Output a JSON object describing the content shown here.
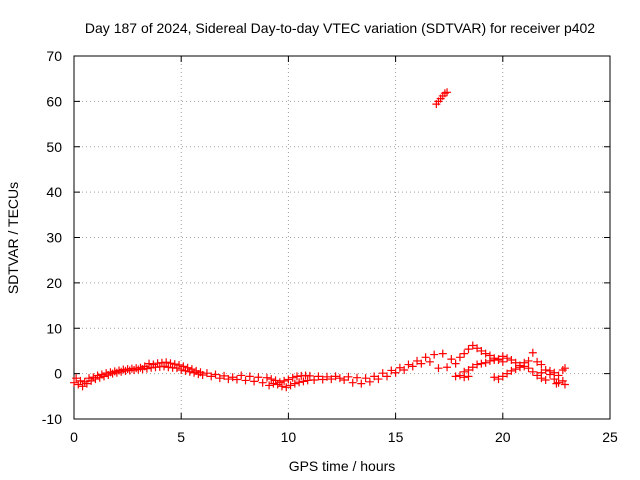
{
  "chart_data": {
    "type": "scatter",
    "title": "Day 187 of 2024, Sidereal Day-to-day VTEC variation (SDTVAR) for receiver p402",
    "xlabel": "GPS time / hours",
    "ylabel": "SDTVAR / TECUs",
    "xlim": [
      0,
      25
    ],
    "ylim": [
      -10,
      70
    ],
    "xticks": [
      "0",
      "5",
      "10",
      "15",
      "20",
      "25"
    ],
    "yticks": [
      "-10",
      "0",
      "10",
      "20",
      "30",
      "40",
      "50",
      "60",
      "70"
    ],
    "grid": true,
    "marker_color": "#ff0000",
    "series": [
      {
        "name": "SDTVAR",
        "points": [
          [
            0.0,
            -2.0
          ],
          [
            0.1,
            -1.0
          ],
          [
            0.2,
            -2.4
          ],
          [
            0.3,
            -1.6
          ],
          [
            0.4,
            -2.8
          ],
          [
            0.5,
            -1.8
          ],
          [
            0.6,
            -2.2
          ],
          [
            0.7,
            -1.0
          ],
          [
            0.8,
            -1.6
          ],
          [
            0.9,
            -0.8
          ],
          [
            1.0,
            -1.2
          ],
          [
            1.1,
            -0.4
          ],
          [
            1.2,
            -0.9
          ],
          [
            1.3,
            -0.2
          ],
          [
            1.4,
            -0.6
          ],
          [
            1.5,
            0.1
          ],
          [
            1.6,
            -0.3
          ],
          [
            1.7,
            0.3
          ],
          [
            1.8,
            0.0
          ],
          [
            1.9,
            0.5
          ],
          [
            2.0,
            0.2
          ],
          [
            2.1,
            0.7
          ],
          [
            2.2,
            0.4
          ],
          [
            2.3,
            0.9
          ],
          [
            2.4,
            0.6
          ],
          [
            2.5,
            1.0
          ],
          [
            2.6,
            0.7
          ],
          [
            2.7,
            1.1
          ],
          [
            2.8,
            0.8
          ],
          [
            2.9,
            1.2
          ],
          [
            3.0,
            0.9
          ],
          [
            3.1,
            1.3
          ],
          [
            3.2,
            1.0
          ],
          [
            3.3,
            1.6
          ],
          [
            3.4,
            1.1
          ],
          [
            3.5,
            2.2
          ],
          [
            3.6,
            1.3
          ],
          [
            3.7,
            2.0
          ],
          [
            3.8,
            1.4
          ],
          [
            3.9,
            2.3
          ],
          [
            4.0,
            1.5
          ],
          [
            4.1,
            2.4
          ],
          [
            4.2,
            1.6
          ],
          [
            4.3,
            2.5
          ],
          [
            4.4,
            1.4
          ],
          [
            4.5,
            2.3
          ],
          [
            4.6,
            1.3
          ],
          [
            4.7,
            2.1
          ],
          [
            4.8,
            1.2
          ],
          [
            4.9,
            1.9
          ],
          [
            5.0,
            0.8
          ],
          [
            5.1,
            1.6
          ],
          [
            5.2,
            0.6
          ],
          [
            5.3,
            1.3
          ],
          [
            5.4,
            0.4
          ],
          [
            5.5,
            1.0
          ],
          [
            5.6,
            0.2
          ],
          [
            5.7,
            0.6
          ],
          [
            5.8,
            -0.1
          ],
          [
            5.9,
            0.3
          ],
          [
            6.0,
            -0.3
          ],
          [
            6.2,
            0.1
          ],
          [
            6.4,
            -0.6
          ],
          [
            6.6,
            -0.2
          ],
          [
            6.8,
            -1.0
          ],
          [
            7.0,
            -0.5
          ],
          [
            7.2,
            -1.2
          ],
          [
            7.4,
            -0.8
          ],
          [
            7.6,
            -1.3
          ],
          [
            7.8,
            -0.4
          ],
          [
            8.0,
            -1.5
          ],
          [
            8.2,
            -0.6
          ],
          [
            8.4,
            -1.7
          ],
          [
            8.6,
            -0.8
          ],
          [
            8.8,
            -2.0
          ],
          [
            9.0,
            -0.9
          ],
          [
            9.1,
            -2.6
          ],
          [
            9.2,
            -1.2
          ],
          [
            9.3,
            -2.2
          ],
          [
            9.4,
            -1.5
          ],
          [
            9.5,
            -2.4
          ],
          [
            9.6,
            -1.9
          ],
          [
            9.7,
            -2.8
          ],
          [
            9.8,
            -1.6
          ],
          [
            9.9,
            -3.0
          ],
          [
            10.0,
            -1.3
          ],
          [
            10.1,
            -2.6
          ],
          [
            10.2,
            -0.9
          ],
          [
            10.3,
            -2.2
          ],
          [
            10.4,
            -0.6
          ],
          [
            10.5,
            -1.9
          ],
          [
            10.6,
            -0.5
          ],
          [
            10.7,
            -1.7
          ],
          [
            10.8,
            -0.4
          ],
          [
            10.9,
            -1.5
          ],
          [
            11.0,
            -0.5
          ],
          [
            11.2,
            -1.4
          ],
          [
            11.4,
            -0.6
          ],
          [
            11.6,
            -1.3
          ],
          [
            11.8,
            -0.7
          ],
          [
            12.0,
            -1.2
          ],
          [
            12.2,
            -0.6
          ],
          [
            12.4,
            -1.0
          ],
          [
            12.6,
            -1.4
          ],
          [
            12.8,
            -0.7
          ],
          [
            13.0,
            -2.0
          ],
          [
            13.2,
            -0.9
          ],
          [
            13.4,
            -2.2
          ],
          [
            13.6,
            -1.0
          ],
          [
            13.8,
            -1.8
          ],
          [
            14.0,
            -0.6
          ],
          [
            14.2,
            -1.2
          ],
          [
            14.4,
            0.1
          ],
          [
            14.6,
            -0.6
          ],
          [
            14.8,
            0.7
          ],
          [
            15.0,
            0.2
          ],
          [
            15.2,
            1.3
          ],
          [
            15.4,
            0.8
          ],
          [
            15.6,
            2.0
          ],
          [
            15.8,
            1.6
          ],
          [
            16.0,
            2.8
          ],
          [
            16.2,
            2.2
          ],
          [
            16.4,
            3.6
          ],
          [
            16.6,
            2.6
          ],
          [
            16.8,
            4.2
          ],
          [
            17.0,
            1.2
          ],
          [
            17.2,
            4.4
          ],
          [
            17.4,
            1.4
          ],
          [
            17.6,
            3.2
          ],
          [
            17.8,
            2.2
          ],
          [
            18.0,
            3.6
          ],
          [
            18.2,
            4.4
          ],
          [
            18.4,
            5.4
          ],
          [
            18.6,
            6.2
          ],
          [
            18.8,
            5.6
          ],
          [
            19.0,
            5.0
          ],
          [
            19.2,
            4.4
          ],
          [
            19.4,
            4.0
          ],
          [
            19.6,
            3.4
          ],
          [
            19.8,
            3.0
          ],
          [
            18.2,
            0.4
          ],
          [
            18.4,
            0.8
          ],
          [
            18.6,
            1.4
          ],
          [
            18.8,
            2.0
          ],
          [
            19.0,
            2.2
          ],
          [
            19.2,
            2.4
          ],
          [
            19.4,
            2.8
          ],
          [
            19.6,
            3.0
          ],
          [
            19.8,
            3.2
          ],
          [
            20.0,
            2.6
          ],
          [
            20.0,
            3.8
          ],
          [
            20.2,
            3.4
          ],
          [
            20.4,
            3.0
          ],
          [
            20.6,
            2.4
          ],
          [
            20.8,
            1.8
          ],
          [
            21.0,
            1.6
          ],
          [
            21.2,
            1.2
          ],
          [
            21.4,
            0.4
          ],
          [
            21.6,
            -0.4
          ],
          [
            21.8,
            -1.0
          ],
          [
            19.6,
            -0.8
          ],
          [
            19.8,
            -1.2
          ],
          [
            20.0,
            -0.6
          ],
          [
            20.2,
            0.0
          ],
          [
            20.4,
            0.6
          ],
          [
            20.6,
            1.0
          ],
          [
            20.8,
            1.4
          ],
          [
            21.0,
            2.4
          ],
          [
            21.2,
            2.8
          ],
          [
            21.4,
            4.6
          ],
          [
            17.8,
            -0.6
          ],
          [
            18.0,
            -0.4
          ],
          [
            18.2,
            -0.8
          ],
          [
            18.4,
            -0.6
          ],
          [
            21.6,
            2.6
          ],
          [
            21.8,
            2.0
          ],
          [
            22.0,
            0.8
          ],
          [
            22.2,
            -0.2
          ],
          [
            22.4,
            -1.2
          ],
          [
            22.6,
            -2.0
          ],
          [
            22.2,
            0.6
          ],
          [
            22.4,
            0.2
          ],
          [
            22.6,
            -0.4
          ],
          [
            22.8,
            0.8
          ],
          [
            22.9,
            1.2
          ],
          [
            22.8,
            -1.6
          ],
          [
            22.9,
            -2.4
          ],
          [
            22.5,
            -2.2
          ],
          [
            22.0,
            -1.4
          ],
          [
            21.8,
            0.2
          ],
          [
            16.9,
            59.4
          ],
          [
            17.0,
            60.0
          ],
          [
            17.1,
            60.6
          ],
          [
            17.2,
            61.2
          ],
          [
            17.3,
            61.8
          ],
          [
            17.4,
            62.0
          ]
        ]
      }
    ]
  }
}
